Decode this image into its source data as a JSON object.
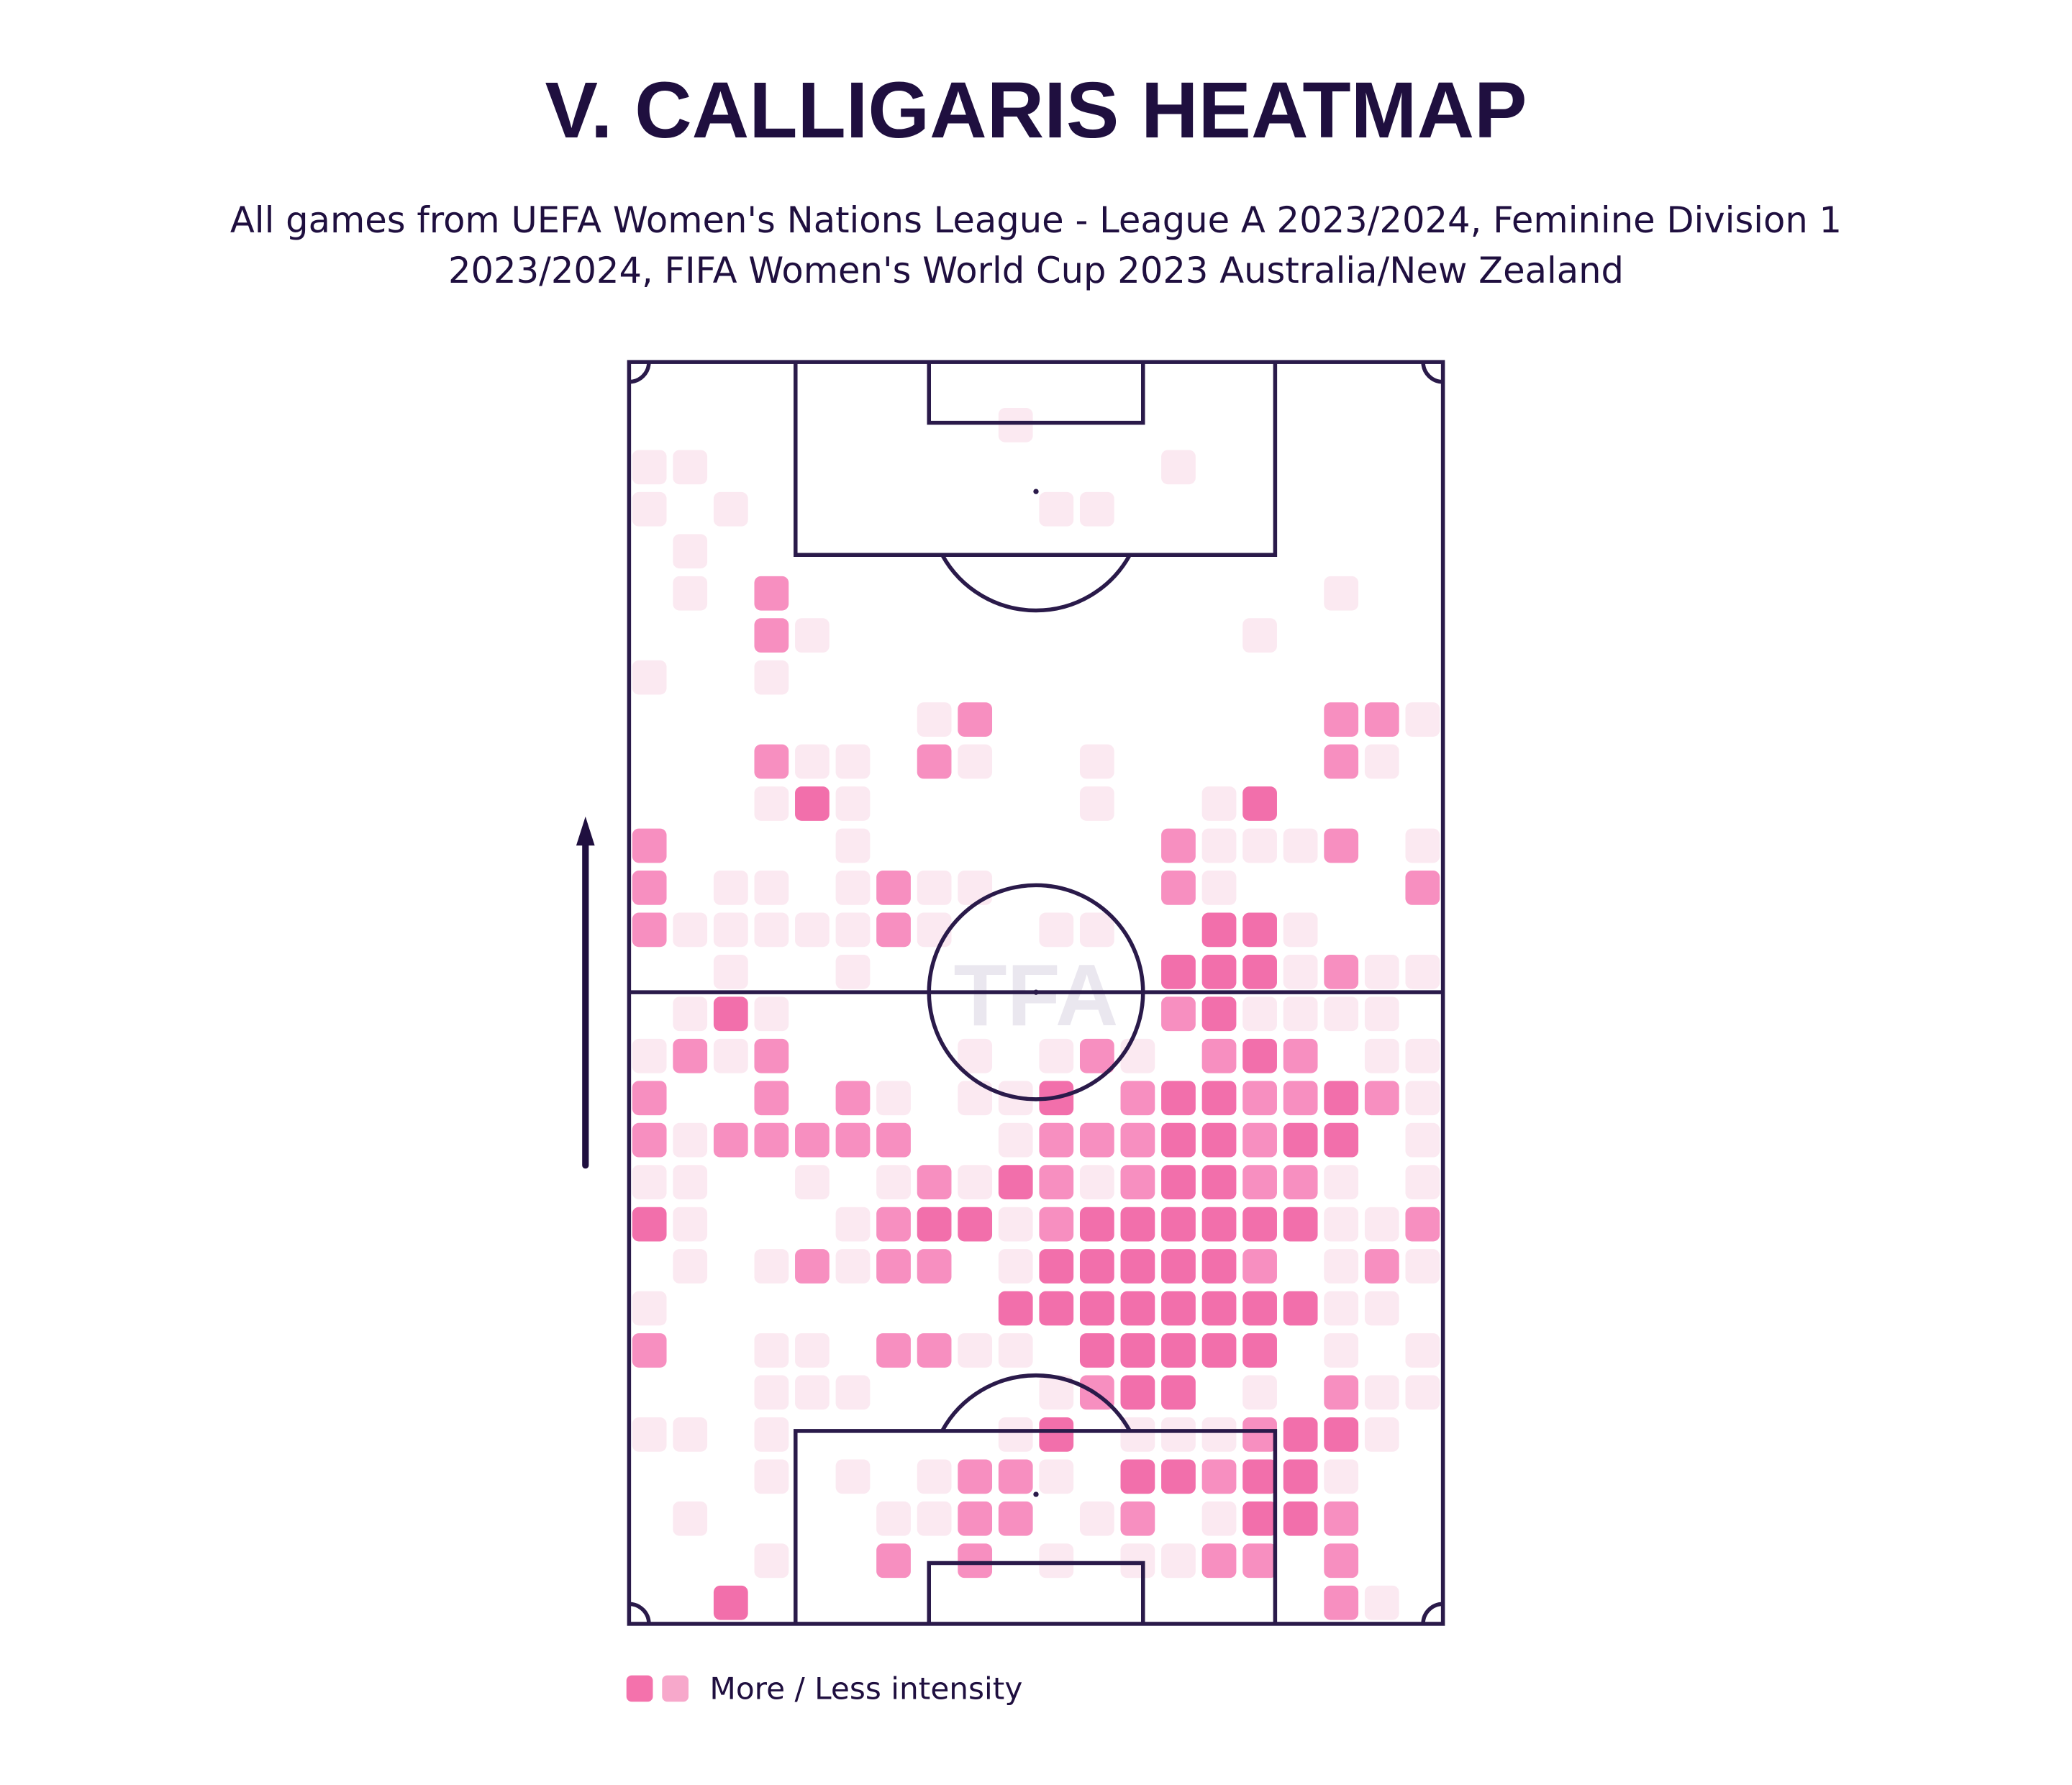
{
  "chart_data": {
    "type": "heatmap",
    "title": "V. CALLIGARIS HEATMAP",
    "subtitle": [
      "All games from UEFA Women's Nations League - League A 2023/2024, Feminine Division 1",
      "2023/2024, FIFA Women's World Cup 2023 Australia/New Zealand"
    ],
    "watermark": "TFA",
    "level_colors": [
      "#fbe9f1",
      "#f78fc0",
      "#f26fab"
    ],
    "legend": {
      "label": "More / Less intensity",
      "colors": [
        "#f472ac",
        "#f7a8cb"
      ]
    },
    "values": [
      [
        0,
        0,
        0,
        0,
        0,
        0,
        0,
        0,
        0,
        0,
        0,
        0,
        0,
        0,
        0,
        0,
        0,
        0,
        0,
        0
      ],
      [
        0,
        0,
        0,
        0,
        0,
        0,
        0,
        0,
        0,
        1,
        0,
        0,
        0,
        0,
        0,
        0,
        0,
        0,
        0,
        0
      ],
      [
        1,
        1,
        0,
        0,
        0,
        0,
        0,
        0,
        0,
        0,
        0,
        0,
        0,
        1,
        0,
        0,
        0,
        0,
        0,
        0
      ],
      [
        1,
        0,
        1,
        0,
        0,
        0,
        0,
        0,
        0,
        0,
        1,
        1,
        0,
        0,
        0,
        0,
        0,
        0,
        0,
        0
      ],
      [
        0,
        1,
        0,
        0,
        0,
        0,
        0,
        0,
        0,
        0,
        0,
        0,
        0,
        0,
        0,
        0,
        0,
        0,
        0,
        0
      ],
      [
        0,
        1,
        0,
        2,
        0,
        0,
        0,
        0,
        0,
        0,
        0,
        0,
        0,
        0,
        0,
        0,
        0,
        1,
        0,
        0
      ],
      [
        0,
        0,
        0,
        2,
        1,
        0,
        0,
        0,
        0,
        0,
        0,
        0,
        0,
        0,
        0,
        1,
        0,
        0,
        0,
        0
      ],
      [
        1,
        0,
        0,
        1,
        0,
        0,
        0,
        0,
        0,
        0,
        0,
        0,
        0,
        0,
        0,
        0,
        0,
        0,
        0,
        0
      ],
      [
        0,
        0,
        0,
        0,
        0,
        0,
        0,
        1,
        2,
        0,
        0,
        0,
        0,
        0,
        0,
        0,
        0,
        2,
        2,
        1
      ],
      [
        0,
        0,
        0,
        2,
        1,
        1,
        0,
        2,
        1,
        0,
        0,
        1,
        0,
        0,
        0,
        0,
        0,
        2,
        1,
        0
      ],
      [
        0,
        0,
        0,
        1,
        3,
        1,
        0,
        0,
        0,
        0,
        0,
        1,
        0,
        0,
        1,
        3,
        0,
        0,
        0,
        0
      ],
      [
        2,
        0,
        0,
        0,
        0,
        1,
        0,
        0,
        0,
        0,
        0,
        0,
        0,
        2,
        1,
        1,
        1,
        2,
        0,
        1
      ],
      [
        2,
        0,
        1,
        1,
        0,
        1,
        2,
        1,
        1,
        0,
        0,
        0,
        0,
        2,
        1,
        0,
        0,
        0,
        0,
        2
      ],
      [
        2,
        1,
        1,
        1,
        1,
        1,
        2,
        1,
        0,
        0,
        1,
        1,
        0,
        0,
        3,
        3,
        1,
        0,
        0,
        0
      ],
      [
        0,
        0,
        1,
        0,
        0,
        1,
        0,
        0,
        0,
        0,
        0,
        0,
        0,
        3,
        3,
        3,
        1,
        2,
        1,
        1
      ],
      [
        0,
        1,
        3,
        1,
        0,
        0,
        0,
        0,
        0,
        0,
        0,
        0,
        0,
        2,
        3,
        1,
        1,
        1,
        1,
        0
      ],
      [
        1,
        2,
        1,
        2,
        0,
        0,
        0,
        0,
        1,
        0,
        1,
        2,
        1,
        0,
        2,
        3,
        2,
        0,
        1,
        1
      ],
      [
        2,
        0,
        0,
        2,
        0,
        2,
        1,
        0,
        1,
        1,
        3,
        0,
        2,
        3,
        3,
        2,
        2,
        3,
        2,
        1
      ],
      [
        2,
        1,
        2,
        2,
        2,
        2,
        2,
        0,
        0,
        1,
        2,
        2,
        2,
        3,
        3,
        2,
        3,
        3,
        0,
        1
      ],
      [
        1,
        1,
        0,
        0,
        1,
        0,
        1,
        2,
        1,
        3,
        2,
        1,
        2,
        3,
        3,
        2,
        2,
        1,
        0,
        1
      ],
      [
        3,
        1,
        0,
        0,
        0,
        1,
        2,
        3,
        3,
        1,
        2,
        3,
        3,
        3,
        3,
        3,
        3,
        1,
        1,
        2
      ],
      [
        0,
        1,
        0,
        1,
        2,
        1,
        2,
        2,
        0,
        1,
        3,
        3,
        3,
        3,
        3,
        2,
        0,
        1,
        2,
        1
      ],
      [
        1,
        0,
        0,
        0,
        0,
        0,
        0,
        0,
        0,
        3,
        3,
        3,
        3,
        3,
        3,
        3,
        3,
        1,
        1,
        0
      ],
      [
        2,
        0,
        0,
        1,
        1,
        0,
        2,
        2,
        1,
        1,
        0,
        3,
        3,
        3,
        3,
        3,
        0,
        1,
        0,
        1
      ],
      [
        0,
        0,
        0,
        1,
        1,
        1,
        0,
        0,
        0,
        0,
        1,
        2,
        3,
        3,
        0,
        1,
        0,
        2,
        1,
        1
      ],
      [
        1,
        1,
        0,
        1,
        0,
        0,
        0,
        0,
        0,
        1,
        3,
        0,
        1,
        1,
        1,
        2,
        3,
        3,
        1,
        0
      ],
      [
        0,
        0,
        0,
        1,
        0,
        1,
        0,
        1,
        2,
        2,
        1,
        0,
        3,
        3,
        2,
        3,
        3,
        1,
        0,
        0
      ],
      [
        0,
        1,
        0,
        0,
        0,
        0,
        1,
        1,
        2,
        2,
        0,
        1,
        2,
        0,
        1,
        3,
        3,
        2,
        0,
        0
      ],
      [
        0,
        0,
        0,
        1,
        0,
        0,
        2,
        0,
        2,
        0,
        1,
        0,
        1,
        1,
        2,
        2,
        0,
        2,
        0,
        0
      ],
      [
        0,
        0,
        3,
        0,
        0,
        0,
        0,
        0,
        0,
        0,
        0,
        0,
        0,
        0,
        0,
        0,
        0,
        2,
        1,
        0
      ]
    ]
  }
}
